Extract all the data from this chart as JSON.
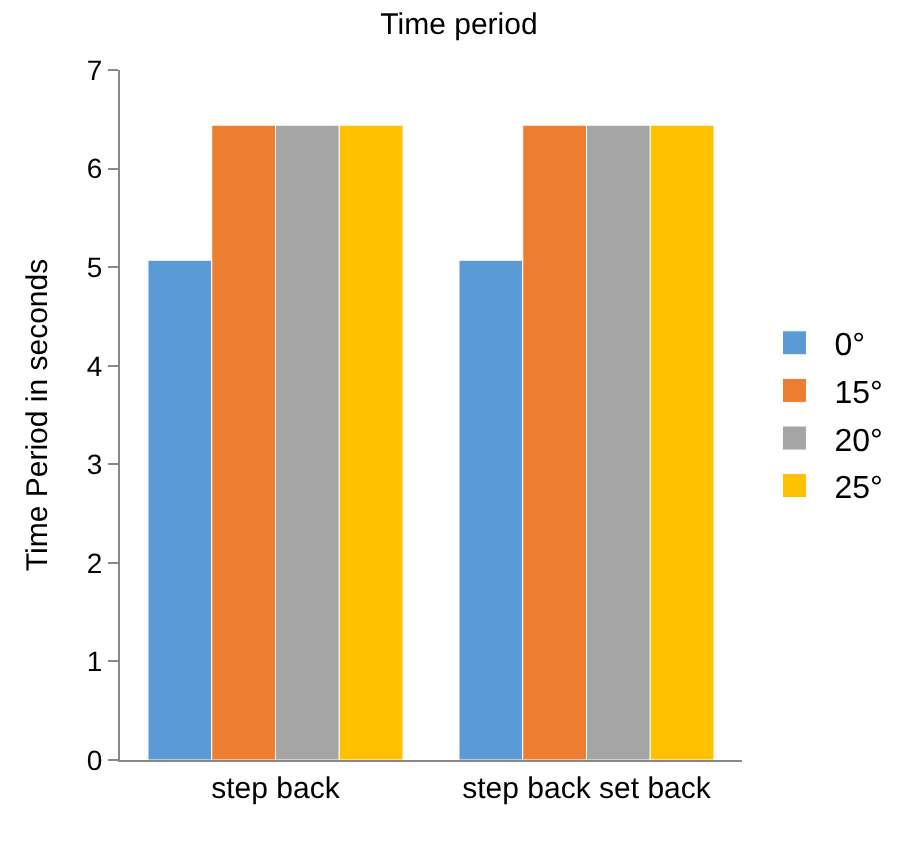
{
  "chart_data": {
    "type": "bar",
    "title": "Time period",
    "ylabel": "Time Period in seconds",
    "categories": [
      "step back",
      "step back set back"
    ],
    "series": [
      {
        "name": "0°",
        "color": "#5b9bd5",
        "values": [
          5.07,
          5.07
        ]
      },
      {
        "name": "15°",
        "color": "#ed7d31",
        "values": [
          6.44,
          6.44
        ]
      },
      {
        "name": "20°",
        "color": "#a5a5a5",
        "values": [
          6.44,
          6.44
        ]
      },
      {
        "name": "25°",
        "color": "#ffc000",
        "values": [
          6.44,
          6.44
        ]
      }
    ],
    "ylim": [
      0,
      7
    ],
    "yticks": [
      0,
      1,
      2,
      3,
      4,
      5,
      6,
      7
    ],
    "grid": false,
    "legend": "right"
  }
}
